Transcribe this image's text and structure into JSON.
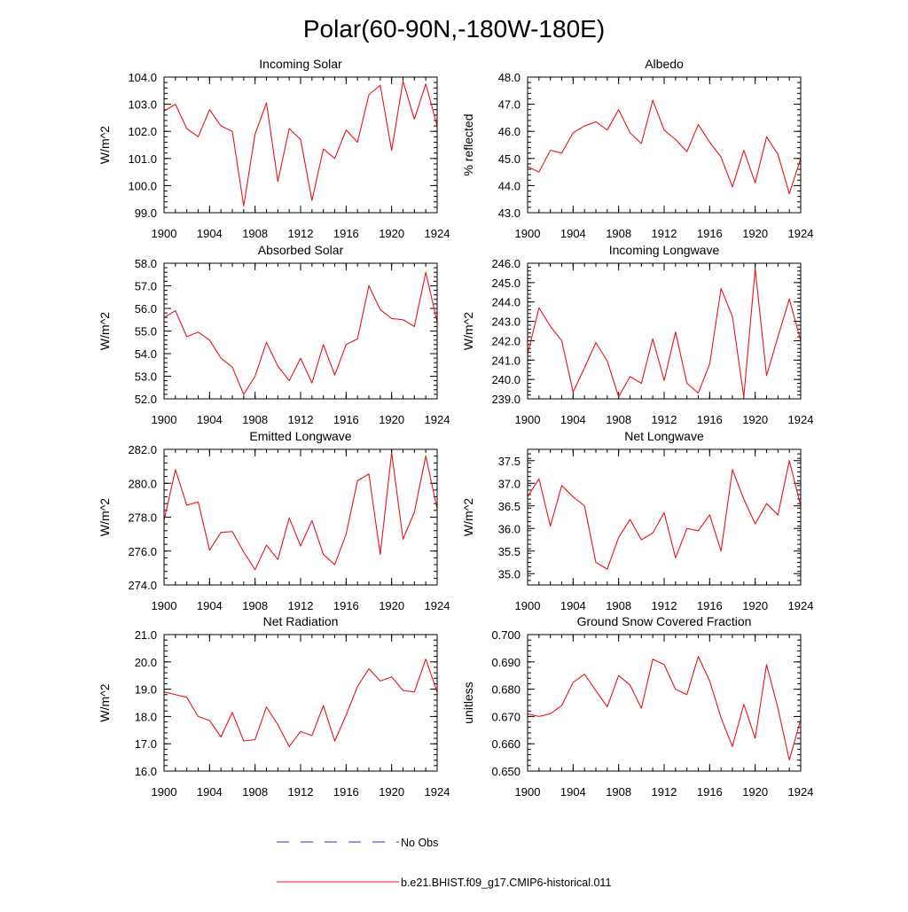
{
  "title": "Polar(60-90N,-180W-180E)",
  "colors": {
    "model": "#e8141a",
    "obs": "#2b2bd6",
    "frame": "#000000"
  },
  "legend": {
    "obs_label": "No Obs",
    "model_label": "b.e21.BHIST.f09_g17.CMIP6-historical.011"
  },
  "chart_data": [
    {
      "type": "line",
      "title": "Incoming Solar",
      "ylabel": "W/m^2",
      "xlim": [
        1900,
        1924
      ],
      "ylim": [
        99.0,
        104.0
      ],
      "xticks": [
        1900,
        1904,
        1908,
        1912,
        1916,
        1920,
        1924
      ],
      "yticks": [
        99.0,
        100.0,
        101.0,
        102.0,
        103.0,
        104.0
      ],
      "ytick_labels": [
        "99.0",
        "100.0",
        "101.0",
        "102.0",
        "103.0",
        "104.0"
      ],
      "x": [
        1900,
        1901,
        1902,
        1903,
        1904,
        1905,
        1906,
        1907,
        1908,
        1909,
        1910,
        1911,
        1912,
        1913,
        1914,
        1915,
        1916,
        1917,
        1918,
        1919,
        1920,
        1921,
        1922,
        1923,
        1924
      ],
      "series": [
        {
          "values": [
            102.75,
            103.0,
            102.1,
            101.8,
            102.8,
            102.2,
            102.0,
            99.25,
            101.9,
            103.05,
            100.15,
            102.1,
            101.7,
            99.45,
            101.35,
            101.0,
            102.05,
            101.6,
            103.35,
            103.7,
            101.3,
            103.85,
            102.45,
            103.75,
            102.2
          ]
        }
      ]
    },
    {
      "type": "line",
      "title": "Albedo",
      "ylabel": "% reflected",
      "xlim": [
        1900,
        1924
      ],
      "ylim": [
        43.0,
        48.0
      ],
      "xticks": [
        1900,
        1904,
        1908,
        1912,
        1916,
        1920,
        1924
      ],
      "yticks": [
        43.0,
        44.0,
        45.0,
        46.0,
        47.0,
        48.0
      ],
      "ytick_labels": [
        "43.0",
        "44.0",
        "45.0",
        "46.0",
        "47.0",
        "48.0"
      ],
      "x": [
        1900,
        1901,
        1902,
        1903,
        1904,
        1905,
        1906,
        1907,
        1908,
        1909,
        1910,
        1911,
        1912,
        1913,
        1914,
        1915,
        1916,
        1917,
        1918,
        1919,
        1920,
        1921,
        1922,
        1923,
        1924
      ],
      "series": [
        {
          "values": [
            44.7,
            44.5,
            45.3,
            45.2,
            45.95,
            46.2,
            46.35,
            46.05,
            46.8,
            45.95,
            45.55,
            47.15,
            46.05,
            45.7,
            45.25,
            46.25,
            45.6,
            45.05,
            43.95,
            45.3,
            44.1,
            45.8,
            45.15,
            43.7,
            45.0
          ]
        }
      ]
    },
    {
      "type": "line",
      "title": "Absorbed Solar",
      "ylabel": "W/m^2",
      "xlim": [
        1900,
        1924
      ],
      "ylim": [
        52.0,
        58.0
      ],
      "xticks": [
        1900,
        1904,
        1908,
        1912,
        1916,
        1920,
        1924
      ],
      "yticks": [
        52.0,
        53.0,
        54.0,
        55.0,
        56.0,
        57.0,
        58.0
      ],
      "ytick_labels": [
        "52.0",
        "53.0",
        "54.0",
        "55.0",
        "56.0",
        "57.0",
        "58.0"
      ],
      "x": [
        1900,
        1901,
        1902,
        1903,
        1904,
        1905,
        1906,
        1907,
        1908,
        1909,
        1910,
        1911,
        1912,
        1913,
        1914,
        1915,
        1916,
        1917,
        1918,
        1919,
        1920,
        1921,
        1922,
        1923,
        1924
      ],
      "series": [
        {
          "values": [
            55.6,
            55.9,
            54.75,
            54.95,
            54.6,
            53.8,
            53.4,
            52.2,
            53.0,
            54.5,
            53.45,
            52.8,
            53.8,
            52.7,
            54.4,
            53.05,
            54.4,
            54.65,
            57.0,
            55.95,
            55.55,
            55.5,
            55.2,
            57.6,
            55.4
          ]
        }
      ]
    },
    {
      "type": "line",
      "title": "Incoming Longwave",
      "ylabel": "W/m^2",
      "xlim": [
        1900,
        1924
      ],
      "ylim": [
        239.0,
        246.0
      ],
      "xticks": [
        1900,
        1904,
        1908,
        1912,
        1916,
        1920,
        1924
      ],
      "yticks": [
        239.0,
        240.0,
        241.0,
        242.0,
        243.0,
        244.0,
        245.0,
        246.0
      ],
      "ytick_labels": [
        "239.0",
        "240.0",
        "241.0",
        "242.0",
        "243.0",
        "244.0",
        "245.0",
        "246.0"
      ],
      "x": [
        1900,
        1901,
        1902,
        1903,
        1904,
        1905,
        1906,
        1907,
        1908,
        1909,
        1910,
        1911,
        1912,
        1913,
        1914,
        1915,
        1916,
        1917,
        1918,
        1919,
        1920,
        1921,
        1922,
        1923,
        1924
      ],
      "series": [
        {
          "values": [
            241.3,
            243.7,
            242.75,
            242.0,
            239.35,
            240.6,
            241.9,
            240.95,
            239.1,
            240.15,
            239.8,
            242.1,
            239.95,
            242.45,
            239.8,
            239.3,
            240.8,
            244.7,
            243.25,
            239.1,
            245.7,
            240.2,
            242.2,
            244.15,
            242.0
          ]
        }
      ]
    },
    {
      "type": "line",
      "title": "Emitted Longwave",
      "ylabel": "W/m^2",
      "xlim": [
        1900,
        1924
      ],
      "ylim": [
        274.0,
        282.0
      ],
      "xticks": [
        1900,
        1904,
        1908,
        1912,
        1916,
        1920,
        1924
      ],
      "yticks": [
        274.0,
        276.0,
        278.0,
        280.0,
        282.0
      ],
      "ytick_labels": [
        "274.0",
        "276.0",
        "278.0",
        "280.0",
        "282.0"
      ],
      "x": [
        1900,
        1901,
        1902,
        1903,
        1904,
        1905,
        1906,
        1907,
        1908,
        1909,
        1910,
        1911,
        1912,
        1913,
        1914,
        1915,
        1916,
        1917,
        1918,
        1919,
        1920,
        1921,
        1922,
        1923,
        1924
      ],
      "series": [
        {
          "values": [
            277.8,
            280.8,
            278.7,
            278.9,
            276.05,
            277.1,
            277.15,
            275.95,
            274.9,
            276.35,
            275.5,
            277.95,
            276.3,
            277.8,
            275.8,
            275.2,
            277.0,
            280.15,
            280.55,
            275.8,
            281.8,
            276.7,
            278.3,
            281.6,
            278.5
          ]
        }
      ]
    },
    {
      "type": "line",
      "title": "Net Longwave",
      "ylabel": "W/m^2",
      "xlim": [
        1900,
        1924
      ],
      "ylim": [
        34.75,
        37.75
      ],
      "xticks": [
        1900,
        1904,
        1908,
        1912,
        1916,
        1920,
        1924
      ],
      "yticks": [
        35.0,
        35.5,
        36.0,
        36.5,
        37.0,
        37.5
      ],
      "ytick_labels": [
        "35.0",
        "35.5",
        "36.0",
        "36.5",
        "37.0",
        "37.5"
      ],
      "x": [
        1900,
        1901,
        1902,
        1903,
        1904,
        1905,
        1906,
        1907,
        1908,
        1909,
        1910,
        1911,
        1912,
        1913,
        1914,
        1915,
        1916,
        1917,
        1918,
        1919,
        1920,
        1921,
        1922,
        1923,
        1924
      ],
      "series": [
        {
          "values": [
            36.7,
            37.1,
            36.05,
            36.95,
            36.7,
            36.5,
            35.25,
            35.1,
            35.8,
            36.2,
            35.75,
            35.9,
            36.35,
            35.35,
            36.0,
            35.95,
            36.3,
            35.5,
            37.3,
            36.65,
            36.1,
            36.55,
            36.3,
            37.5,
            36.5
          ]
        }
      ]
    },
    {
      "type": "line",
      "title": "Net Radiation",
      "ylabel": "W/m^2",
      "xlim": [
        1900,
        1924
      ],
      "ylim": [
        16.0,
        21.0
      ],
      "xticks": [
        1900,
        1904,
        1908,
        1912,
        1916,
        1920,
        1924
      ],
      "yticks": [
        16.0,
        17.0,
        18.0,
        19.0,
        20.0,
        21.0
      ],
      "ytick_labels": [
        "16.0",
        "17.0",
        "18.0",
        "19.0",
        "20.0",
        "21.0"
      ],
      "x": [
        1900,
        1901,
        1902,
        1903,
        1904,
        1905,
        1906,
        1907,
        1908,
        1909,
        1910,
        1911,
        1912,
        1913,
        1914,
        1915,
        1916,
        1917,
        1918,
        1919,
        1920,
        1921,
        1922,
        1923,
        1924
      ],
      "series": [
        {
          "values": [
            18.9,
            18.8,
            18.7,
            18.0,
            17.85,
            17.25,
            18.15,
            17.1,
            17.15,
            18.35,
            17.7,
            16.9,
            17.45,
            17.3,
            18.4,
            17.1,
            18.05,
            19.1,
            19.75,
            19.3,
            19.45,
            18.95,
            18.9,
            20.1,
            18.9
          ]
        }
      ]
    },
    {
      "type": "line",
      "title": "Ground Snow Covered Fraction",
      "ylabel": "unitless",
      "xlim": [
        1900,
        1924
      ],
      "ylim": [
        0.65,
        0.7
      ],
      "xticks": [
        1900,
        1904,
        1908,
        1912,
        1916,
        1920,
        1924
      ],
      "yticks": [
        0.65,
        0.66,
        0.67,
        0.68,
        0.69,
        0.7
      ],
      "ytick_labels": [
        "0.650",
        "0.660",
        "0.670",
        "0.680",
        "0.690",
        "0.700"
      ],
      "x": [
        1900,
        1901,
        1902,
        1903,
        1904,
        1905,
        1906,
        1907,
        1908,
        1909,
        1910,
        1911,
        1912,
        1913,
        1914,
        1915,
        1916,
        1917,
        1918,
        1919,
        1920,
        1921,
        1922,
        1923,
        1924
      ],
      "series": [
        {
          "values": [
            0.671,
            0.67,
            0.671,
            0.674,
            0.6825,
            0.6855,
            0.6795,
            0.6735,
            0.685,
            0.6815,
            0.673,
            0.691,
            0.689,
            0.68,
            0.678,
            0.692,
            0.683,
            0.6695,
            0.659,
            0.6745,
            0.662,
            0.689,
            0.673,
            0.654,
            0.669
          ]
        }
      ]
    }
  ]
}
